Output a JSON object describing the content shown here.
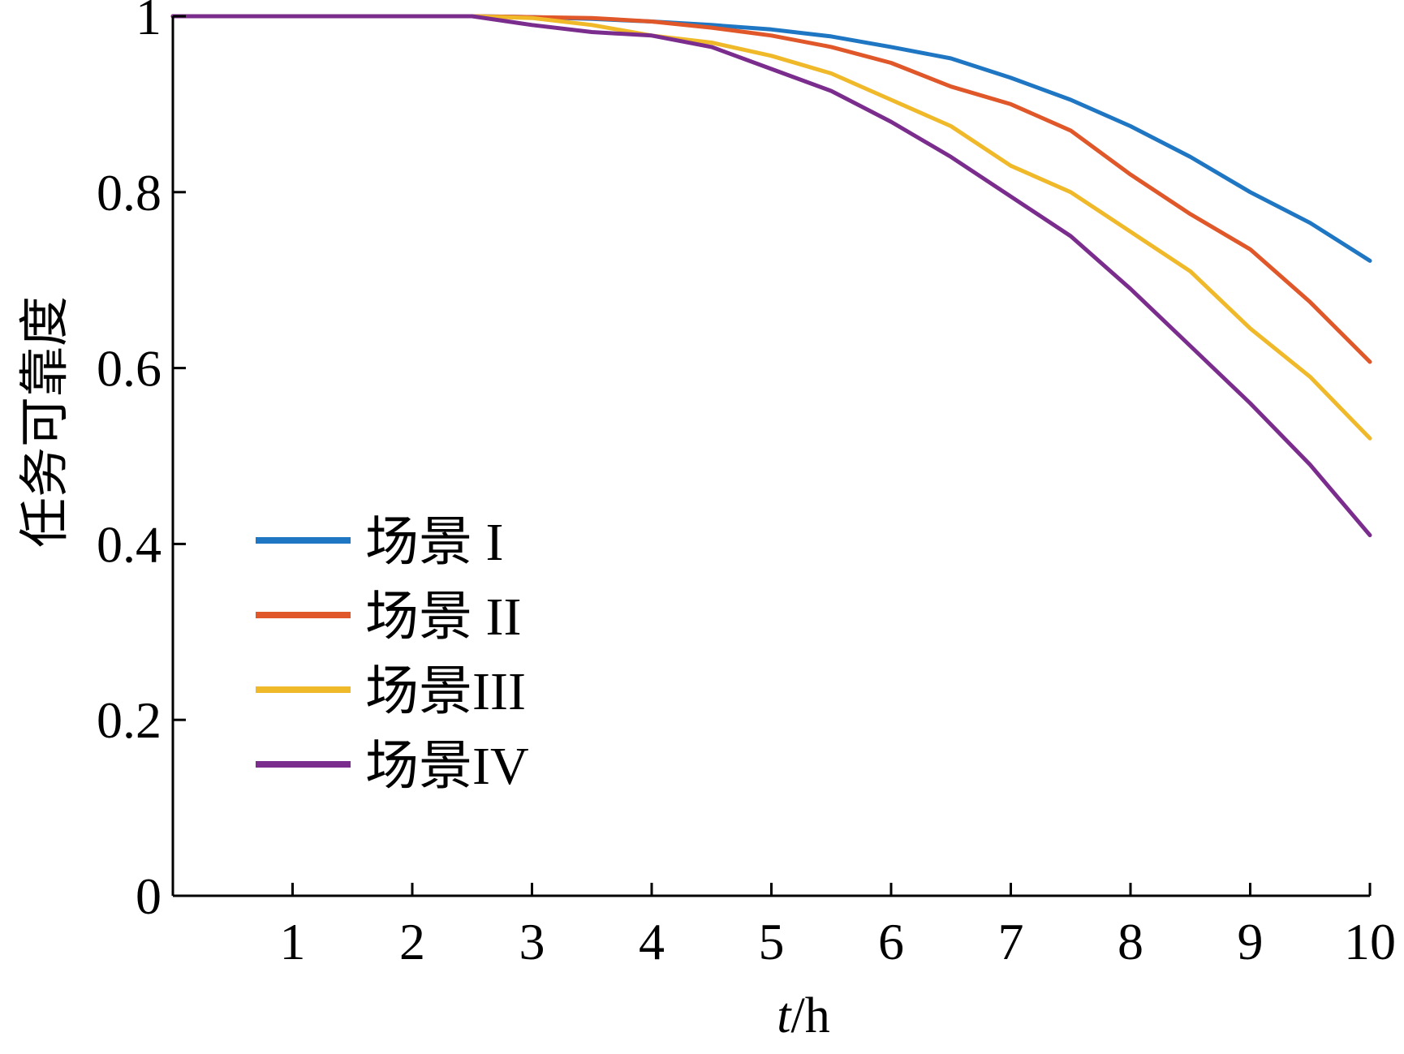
{
  "chart_data": {
    "type": "line",
    "xlabel_italic": "t",
    "xlabel_rest": "/h",
    "ylabel": "任务可靠度",
    "xlim": [
      0,
      10
    ],
    "ylim": [
      0,
      1
    ],
    "x_ticks": [
      1,
      2,
      3,
      4,
      5,
      6,
      7,
      8,
      9,
      10
    ],
    "x_tick_labels": [
      "1",
      "2",
      "3",
      "4",
      "5",
      "6",
      "7",
      "8",
      "9",
      "10"
    ],
    "y_ticks": [
      0,
      0.2,
      0.4,
      0.6,
      0.8,
      1
    ],
    "y_tick_labels": [
      "0",
      "0.2",
      "0.4",
      "0.6",
      "0.8",
      "1"
    ],
    "grid": false,
    "legend_position": "bottom-left",
    "x": [
      0,
      0.5,
      1,
      1.5,
      2,
      2.5,
      3,
      3.5,
      4,
      4.5,
      5,
      5.5,
      6,
      6.5,
      7,
      7.5,
      8,
      8.5,
      9,
      9.5,
      10
    ],
    "series": [
      {
        "name": "场景 I",
        "color": "#1f77c4",
        "values": [
          1,
          1,
          1,
          1,
          1,
          1,
          0.999,
          0.997,
          0.994,
          0.99,
          0.985,
          0.977,
          0.965,
          0.952,
          0.93,
          0.905,
          0.875,
          0.84,
          0.8,
          0.765,
          0.722
        ]
      },
      {
        "name": "场景 II",
        "color": "#e0572a",
        "values": [
          1,
          1,
          1,
          1,
          1,
          1,
          0.999,
          0.998,
          0.994,
          0.987,
          0.978,
          0.965,
          0.947,
          0.92,
          0.9,
          0.87,
          0.82,
          0.775,
          0.735,
          0.675,
          0.607
        ]
      },
      {
        "name": "场景III",
        "color": "#f0b92a",
        "values": [
          1,
          1,
          1,
          1,
          1,
          1,
          0.998,
          0.99,
          0.978,
          0.97,
          0.955,
          0.935,
          0.905,
          0.875,
          0.83,
          0.8,
          0.755,
          0.71,
          0.645,
          0.59,
          0.52
        ]
      },
      {
        "name": "场景IV",
        "color": "#7b2d8e",
        "values": [
          1,
          1,
          1,
          1,
          1,
          1,
          0.99,
          0.982,
          0.978,
          0.965,
          0.94,
          0.915,
          0.88,
          0.84,
          0.795,
          0.75,
          0.69,
          0.625,
          0.56,
          0.49,
          0.41
        ]
      }
    ]
  }
}
